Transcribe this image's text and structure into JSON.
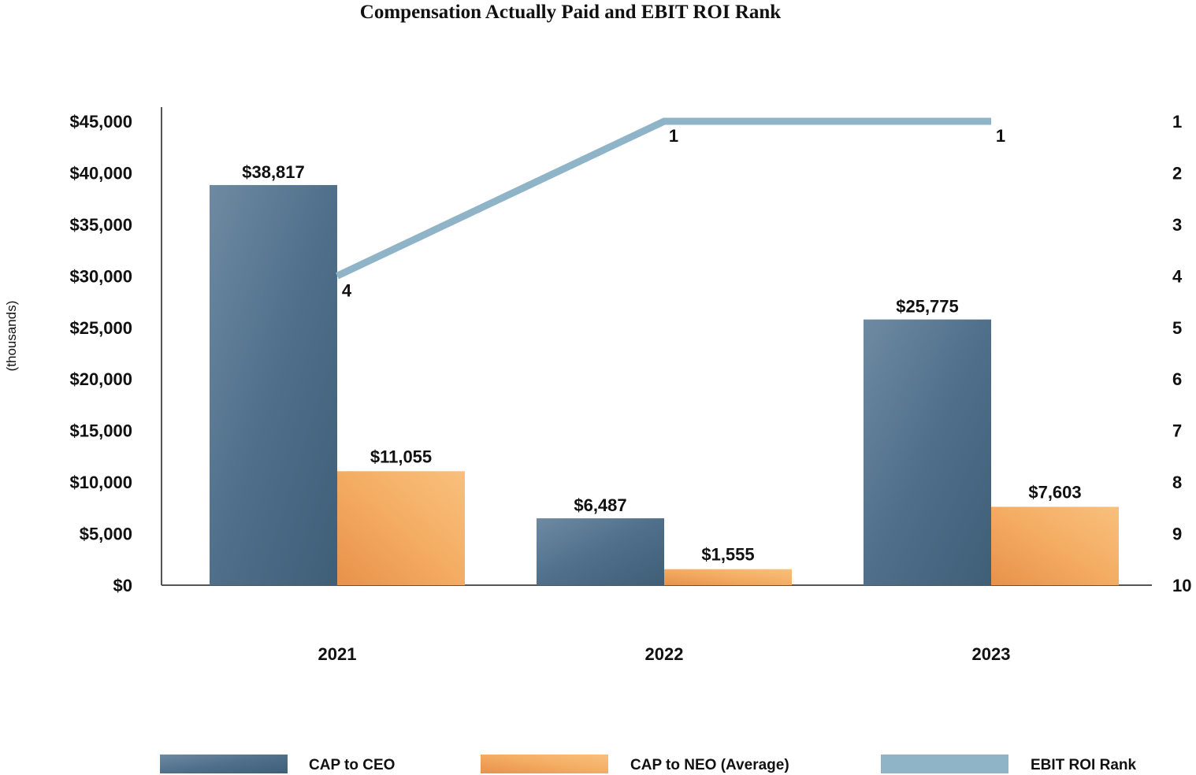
{
  "chart_data": {
    "type": "bar",
    "title": "Compensation Actually Paid and EBIT ROI Rank",
    "ylabel": "(thousands)",
    "categories": [
      "2021",
      "2022",
      "2023"
    ],
    "ylim": [
      0,
      45000
    ],
    "y_ticks": [
      "$0",
      "$5,000",
      "$10,000",
      "$15,000",
      "$20,000",
      "$25,000",
      "$30,000",
      "$35,000",
      "$40,000",
      "$45,000"
    ],
    "y2_range": [
      1,
      10
    ],
    "y2_ticks": [
      "1",
      "2",
      "3",
      "4",
      "5",
      "6",
      "7",
      "8",
      "9",
      "10"
    ],
    "series": [
      {
        "name": "CAP to CEO",
        "kind": "bar",
        "color": "#54748f",
        "values": [
          38817,
          6487,
          25775
        ],
        "labels": [
          "$38,817",
          "$6,487",
          "$25,775"
        ]
      },
      {
        "name": "CAP to NEO (Average)",
        "kind": "bar",
        "color": "#f2a55a",
        "values": [
          11055,
          1555,
          7603
        ],
        "labels": [
          "$11,055",
          "$1,555",
          "$7,603"
        ]
      },
      {
        "name": "EBIT ROI Rank",
        "kind": "line",
        "axis": "secondary",
        "color": "#8fb4c8",
        "values": [
          4,
          1,
          1
        ],
        "labels": [
          "4",
          "1",
          "1"
        ]
      }
    ],
    "legend_position": "bottom",
    "grid": false
  }
}
